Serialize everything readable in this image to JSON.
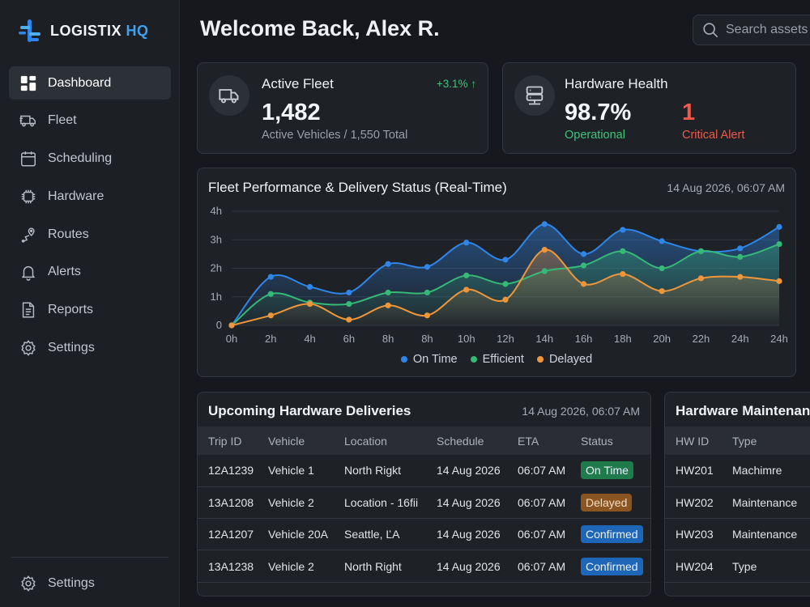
{
  "app": {
    "name": "LOGISTIX",
    "name_suffix": "HQ"
  },
  "sidebar": {
    "items": [
      {
        "label": "Dashboard",
        "icon": "grid-icon",
        "active": true
      },
      {
        "label": "Fleet",
        "icon": "truck-icon"
      },
      {
        "label": "Scheduling",
        "icon": "calendar-icon"
      },
      {
        "label": "Hardware",
        "icon": "chip-icon"
      },
      {
        "label": "Routes",
        "icon": "route-pin-icon"
      },
      {
        "label": "Alerts",
        "icon": "bell-icon"
      },
      {
        "label": "Reports",
        "icon": "document-icon"
      },
      {
        "label": "Settings",
        "icon": "gear-icon"
      }
    ],
    "bottom": {
      "label": "Settings",
      "icon": "gear-icon"
    }
  },
  "header": {
    "welcome": "Welcome Back, Alex R.",
    "search_placeholder": "Search assets"
  },
  "kpis": {
    "fleet": {
      "title": "Active Fleet",
      "value": "1,482",
      "sub": "Active Vehicles / 1,550 Total",
      "change": "+3.1% ↑"
    },
    "hardware": {
      "title": "Hardware Health",
      "value": "98.7%",
      "value_label": "Operational",
      "alert_value": "1",
      "alert_label": "Critical Alert"
    }
  },
  "performance_chart": {
    "title": "Fleet Performance & Delivery Status (Real-Time)",
    "timestamp": "14 Aug 2026, 06:07 AM"
  },
  "chart_data": {
    "type": "line",
    "title": "Fleet Performance & Delivery Status (Real-Time)",
    "x": [
      "0h",
      "2h",
      "4h",
      "6h",
      "8h",
      "8h",
      "10h",
      "12h",
      "14h",
      "16h",
      "18h",
      "20h",
      "22h",
      "24h",
      "24h"
    ],
    "y_ticks": [
      "0",
      "1h",
      "2h",
      "3h",
      "4h"
    ],
    "ylim": [
      0,
      4
    ],
    "grid": true,
    "legend_position": "bottom",
    "series": [
      {
        "name": "On Time",
        "color": "#2f86e8",
        "values": [
          0,
          1.7,
          1.35,
          1.15,
          2.15,
          2.05,
          2.9,
          2.3,
          3.55,
          2.5,
          3.35,
          2.95,
          2.6,
          2.7,
          3.45
        ]
      },
      {
        "name": "Efficient",
        "color": "#36b877",
        "values": [
          0,
          1.1,
          0.8,
          0.75,
          1.15,
          1.15,
          1.75,
          1.45,
          1.9,
          2.1,
          2.6,
          2.0,
          2.6,
          2.4,
          2.85
        ]
      },
      {
        "name": "Delayed",
        "color": "#f0963a",
        "values": [
          0,
          0.35,
          0.75,
          0.2,
          0.7,
          0.35,
          1.25,
          0.9,
          2.65,
          1.45,
          1.8,
          1.2,
          1.65,
          1.7,
          1.55
        ]
      }
    ]
  },
  "deliveries": {
    "title": "Upcoming Hardware Deliveries",
    "timestamp": "14 Aug 2026, 06:07 AM",
    "columns": [
      "Trip ID",
      "Vehicle",
      "Location",
      "Schedule",
      "ETA",
      "Status"
    ],
    "rows": [
      {
        "trip": "12A1239",
        "vehicle": "Vehicle 1",
        "location": "North Rigkt",
        "schedule": "14 Aug 2026",
        "eta": "06:07 AM",
        "status": "On Time",
        "status_color": "#1f7a4c"
      },
      {
        "trip": "13A1208",
        "vehicle": "Vehicle 2",
        "location": "Location - 16fii",
        "schedule": "14 Aug 2026",
        "eta": "06:07 AM",
        "status": "Delayed",
        "status_color": "#8a5520"
      },
      {
        "trip": "12A1207",
        "vehicle": "Vehicle 20A",
        "location": "Seattle, ĽA",
        "schedule": "14 Aug 2026",
        "eta": "06:07 AM",
        "status": "Confirmed",
        "status_color": "#1e66b8"
      },
      {
        "trip": "13A1238",
        "vehicle": "Vehicle 2",
        "location": "North Right",
        "schedule": "14 Aug 2026",
        "eta": "06:07 AM",
        "status": "Confirmed",
        "status_color": "#1e66b8"
      }
    ]
  },
  "maintenance": {
    "title": "Hardware Maintenance",
    "columns": [
      "HW ID",
      "Type"
    ],
    "rows": [
      {
        "id": "HW201",
        "type": "Machimre"
      },
      {
        "id": "HW202",
        "type": "Maintenance"
      },
      {
        "id": "HW203",
        "type": "Maintenance"
      },
      {
        "id": "HW204",
        "type": "Type"
      }
    ]
  }
}
